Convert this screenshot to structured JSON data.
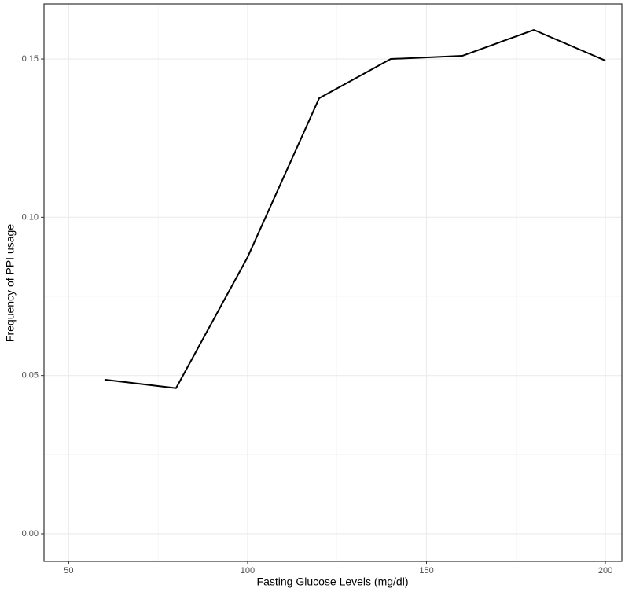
{
  "chart_data": {
    "type": "line",
    "x_label": "Fasting Glucose Levels (mg/dl)",
    "y_label": "Frequency of PPI usage",
    "x": [
      60,
      80,
      100,
      120,
      140,
      160,
      180,
      200
    ],
    "series": [
      {
        "color": "#000000",
        "values": [
          0.0487,
          0.046,
          0.0874,
          0.1376,
          0.15,
          0.151,
          0.1592,
          0.1495
        ]
      }
    ],
    "xlim": [
      43.1,
      204.6
    ],
    "ylim": [
      -0.0087,
      0.1674
    ],
    "xticks": [
      50,
      100,
      150,
      200
    ],
    "yticks": [
      {
        "value": 0,
        "label": "0.00"
      },
      {
        "value": 0.05,
        "label": "0.05"
      },
      {
        "value": 0.1,
        "label": "0.10"
      },
      {
        "value": 0.15,
        "label": "0.15"
      }
    ],
    "x_minor_ticks": [
      75,
      125,
      175
    ],
    "y_minor_ticks": [
      0.025,
      0.075,
      0.125
    ],
    "grid": true
  }
}
